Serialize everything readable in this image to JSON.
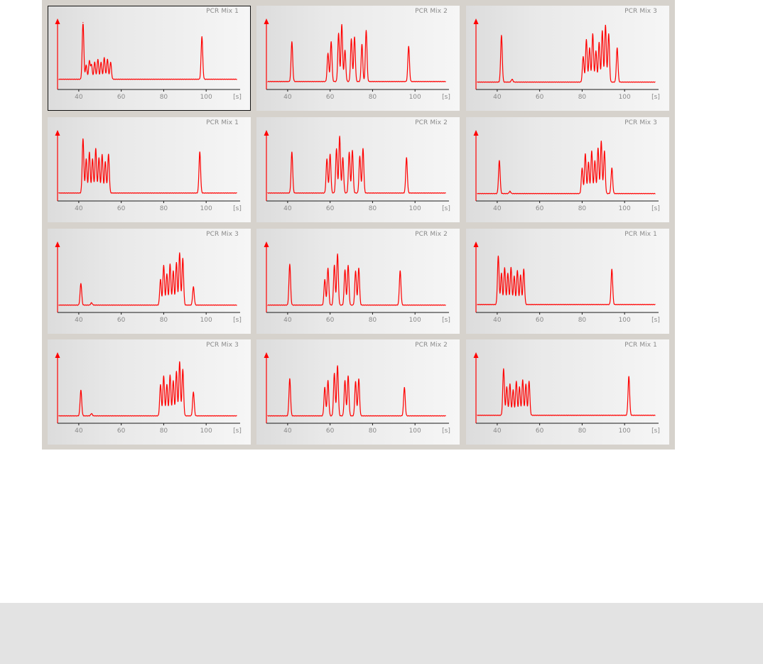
{
  "colors": {
    "trace": "#ff0000",
    "axis": "#1a1a1a",
    "panel_background": "#d6d2cc",
    "tick_label": "#8a8a8a"
  },
  "selected_cell": 0,
  "chart_data": [
    {
      "type": "line",
      "title": "PCR Mix 1",
      "x_unit_label": "[s]",
      "x_ticks": [
        40,
        60,
        80,
        100
      ],
      "x_tick_labels": [
        "40",
        "60",
        "80",
        "100"
      ],
      "xlim": [
        30,
        116
      ],
      "y_axis_arrow": true,
      "baseline": 0.08,
      "peaks": [
        {
          "x": 42,
          "h": 1.0
        },
        {
          "x": 43.5,
          "h": 0.25
        },
        {
          "x": 45,
          "h": 0.32
        },
        {
          "x": 46,
          "h": 0.25
        },
        {
          "x": 47.5,
          "h": 0.3
        },
        {
          "x": 49,
          "h": 0.35
        },
        {
          "x": 50.5,
          "h": 0.3
        },
        {
          "x": 52,
          "h": 0.38
        },
        {
          "x": 53.5,
          "h": 0.35
        },
        {
          "x": 55,
          "h": 0.3
        },
        {
          "x": 98,
          "h": 0.75
        }
      ]
    },
    {
      "type": "line",
      "title": "PCR Mix 2",
      "x_unit_label": "[s]",
      "x_ticks": [
        40,
        60,
        80,
        100
      ],
      "x_tick_labels": [
        "40",
        "60",
        "80",
        "100"
      ],
      "xlim": [
        30,
        116
      ],
      "y_axis_arrow": true,
      "baseline": 0.04,
      "peaks": [
        {
          "x": 42,
          "h": 0.7
        },
        {
          "x": 59,
          "h": 0.5
        },
        {
          "x": 60.5,
          "h": 0.7
        },
        {
          "x": 64,
          "h": 0.85
        },
        {
          "x": 65.5,
          "h": 1.0
        },
        {
          "x": 67,
          "h": 0.55
        },
        {
          "x": 70,
          "h": 0.75
        },
        {
          "x": 71.5,
          "h": 0.78
        },
        {
          "x": 75,
          "h": 0.65
        },
        {
          "x": 77,
          "h": 0.9
        },
        {
          "x": 97,
          "h": 0.62
        }
      ]
    },
    {
      "type": "line",
      "title": "PCR Mix 3",
      "x_unit_label": "[s]",
      "x_ticks": [
        40,
        60,
        80,
        100
      ],
      "x_tick_labels": [
        "40",
        "60",
        "80",
        "100"
      ],
      "xlim": [
        30,
        116
      ],
      "y_axis_arrow": true,
      "baseline": 0.03,
      "peaks": [
        {
          "x": 42,
          "h": 0.82
        },
        {
          "x": 47,
          "h": 0.05
        },
        {
          "x": 80.5,
          "h": 0.45
        },
        {
          "x": 82,
          "h": 0.75
        },
        {
          "x": 83.5,
          "h": 0.6
        },
        {
          "x": 85,
          "h": 0.85
        },
        {
          "x": 86.5,
          "h": 0.55
        },
        {
          "x": 88,
          "h": 0.7
        },
        {
          "x": 89.5,
          "h": 0.9
        },
        {
          "x": 91,
          "h": 1.0
        },
        {
          "x": 92.5,
          "h": 0.85
        },
        {
          "x": 96.5,
          "h": 0.6
        }
      ]
    },
    {
      "type": "line",
      "title": "PCR Mix 1",
      "x_unit_label": "[s]",
      "x_ticks": [
        40,
        60,
        80,
        100
      ],
      "x_tick_labels": [
        "40",
        "60",
        "80",
        "100"
      ],
      "xlim": [
        30,
        116
      ],
      "y_axis_arrow": true,
      "baseline": 0.04,
      "peaks": [
        {
          "x": 42,
          "h": 0.95
        },
        {
          "x": 43.5,
          "h": 0.6
        },
        {
          "x": 45,
          "h": 0.72
        },
        {
          "x": 46.5,
          "h": 0.6
        },
        {
          "x": 48,
          "h": 0.78
        },
        {
          "x": 49.5,
          "h": 0.62
        },
        {
          "x": 51,
          "h": 0.68
        },
        {
          "x": 52.5,
          "h": 0.55
        },
        {
          "x": 54,
          "h": 0.68
        },
        {
          "x": 97,
          "h": 0.72
        }
      ]
    },
    {
      "type": "line",
      "title": "PCR Mix 2",
      "x_unit_label": "[s]",
      "x_ticks": [
        40,
        60,
        80,
        100
      ],
      "x_tick_labels": [
        "40",
        "60",
        "80",
        "100"
      ],
      "xlim": [
        30,
        116
      ],
      "y_axis_arrow": true,
      "baseline": 0.04,
      "peaks": [
        {
          "x": 42,
          "h": 0.72
        },
        {
          "x": 58.5,
          "h": 0.6
        },
        {
          "x": 60,
          "h": 0.68
        },
        {
          "x": 63,
          "h": 0.78
        },
        {
          "x": 64.5,
          "h": 1.0
        },
        {
          "x": 66,
          "h": 0.62
        },
        {
          "x": 69,
          "h": 0.72
        },
        {
          "x": 70.5,
          "h": 0.75
        },
        {
          "x": 74,
          "h": 0.65
        },
        {
          "x": 75.5,
          "h": 0.78
        },
        {
          "x": 96,
          "h": 0.62
        }
      ]
    },
    {
      "type": "line",
      "title": "PCR Mix 3",
      "x_unit_label": "[s]",
      "x_ticks": [
        40,
        60,
        80,
        100
      ],
      "x_tick_labels": [
        "40",
        "60",
        "80",
        "100"
      ],
      "xlim": [
        30,
        116
      ],
      "y_axis_arrow": true,
      "baseline": 0.03,
      "peaks": [
        {
          "x": 41,
          "h": 0.58
        },
        {
          "x": 46,
          "h": 0.04
        },
        {
          "x": 80,
          "h": 0.45
        },
        {
          "x": 81.5,
          "h": 0.7
        },
        {
          "x": 83,
          "h": 0.55
        },
        {
          "x": 84.5,
          "h": 0.75
        },
        {
          "x": 86,
          "h": 0.58
        },
        {
          "x": 87.5,
          "h": 0.8
        },
        {
          "x": 89,
          "h": 0.92
        },
        {
          "x": 90.5,
          "h": 0.75
        },
        {
          "x": 94,
          "h": 0.45
        }
      ]
    },
    {
      "type": "line",
      "title": "PCR Mix 3",
      "x_unit_label": "[s]",
      "x_ticks": [
        40,
        60,
        80,
        100
      ],
      "x_tick_labels": [
        "40",
        "60",
        "80",
        "100"
      ],
      "xlim": [
        30,
        116
      ],
      "y_axis_arrow": true,
      "baseline": 0.03,
      "peaks": [
        {
          "x": 41,
          "h": 0.38
        },
        {
          "x": 46,
          "h": 0.04
        },
        {
          "x": 78.5,
          "h": 0.45
        },
        {
          "x": 80,
          "h": 0.7
        },
        {
          "x": 81.5,
          "h": 0.55
        },
        {
          "x": 83,
          "h": 0.72
        },
        {
          "x": 84.5,
          "h": 0.6
        },
        {
          "x": 86,
          "h": 0.75
        },
        {
          "x": 87.5,
          "h": 0.92
        },
        {
          "x": 89,
          "h": 0.82
        },
        {
          "x": 94,
          "h": 0.32
        }
      ]
    },
    {
      "type": "line",
      "title": "PCR Mix 2",
      "x_unit_label": "[s]",
      "x_ticks": [
        40,
        60,
        80,
        100
      ],
      "x_tick_labels": [
        "40",
        "60",
        "80",
        "100"
      ],
      "xlim": [
        30,
        116
      ],
      "y_axis_arrow": true,
      "baseline": 0.03,
      "peaks": [
        {
          "x": 41,
          "h": 0.72
        },
        {
          "x": 57.5,
          "h": 0.45
        },
        {
          "x": 59,
          "h": 0.65
        },
        {
          "x": 62,
          "h": 0.7
        },
        {
          "x": 63.5,
          "h": 0.9
        },
        {
          "x": 67,
          "h": 0.62
        },
        {
          "x": 68.5,
          "h": 0.7
        },
        {
          "x": 72,
          "h": 0.6
        },
        {
          "x": 73.5,
          "h": 0.65
        },
        {
          "x": 93,
          "h": 0.6
        }
      ]
    },
    {
      "type": "line",
      "title": "PCR Mix 1",
      "x_unit_label": "[s]",
      "x_ticks": [
        40,
        60,
        80,
        100
      ],
      "x_tick_labels": [
        "40",
        "60",
        "80",
        "100"
      ],
      "xlim": [
        30,
        116
      ],
      "y_axis_arrow": true,
      "baseline": 0.04,
      "peaks": [
        {
          "x": 40.5,
          "h": 0.85
        },
        {
          "x": 42,
          "h": 0.55
        },
        {
          "x": 43.5,
          "h": 0.65
        },
        {
          "x": 45,
          "h": 0.55
        },
        {
          "x": 46.5,
          "h": 0.65
        },
        {
          "x": 48,
          "h": 0.5
        },
        {
          "x": 49.5,
          "h": 0.6
        },
        {
          "x": 51,
          "h": 0.52
        },
        {
          "x": 52.5,
          "h": 0.62
        },
        {
          "x": 94,
          "h": 0.62
        }
      ]
    },
    {
      "type": "line",
      "title": "PCR Mix 3",
      "x_unit_label": "[s]",
      "x_ticks": [
        40,
        60,
        80,
        100
      ],
      "x_tick_labels": [
        "40",
        "60",
        "80",
        "100"
      ],
      "xlim": [
        30,
        116
      ],
      "y_axis_arrow": true,
      "baseline": 0.03,
      "peaks": [
        {
          "x": 41,
          "h": 0.45
        },
        {
          "x": 46,
          "h": 0.04
        },
        {
          "x": 78.5,
          "h": 0.55
        },
        {
          "x": 80,
          "h": 0.7
        },
        {
          "x": 81.5,
          "h": 0.55
        },
        {
          "x": 83,
          "h": 0.72
        },
        {
          "x": 84.5,
          "h": 0.62
        },
        {
          "x": 86,
          "h": 0.78
        },
        {
          "x": 87.5,
          "h": 0.95
        },
        {
          "x": 89,
          "h": 0.82
        },
        {
          "x": 94,
          "h": 0.42
        }
      ]
    },
    {
      "type": "line",
      "title": "PCR Mix 2",
      "x_unit_label": "[s]",
      "x_ticks": [
        40,
        60,
        80,
        100
      ],
      "x_tick_labels": [
        "40",
        "60",
        "80",
        "100"
      ],
      "xlim": [
        30,
        116
      ],
      "y_axis_arrow": true,
      "baseline": 0.03,
      "peaks": [
        {
          "x": 41,
          "h": 0.65
        },
        {
          "x": 57.5,
          "h": 0.5
        },
        {
          "x": 59,
          "h": 0.62
        },
        {
          "x": 62,
          "h": 0.75
        },
        {
          "x": 63.5,
          "h": 0.88
        },
        {
          "x": 67,
          "h": 0.62
        },
        {
          "x": 68.5,
          "h": 0.7
        },
        {
          "x": 72,
          "h": 0.6
        },
        {
          "x": 73.5,
          "h": 0.65
        },
        {
          "x": 95,
          "h": 0.5
        }
      ]
    },
    {
      "type": "line",
      "title": "PCR Mix 1",
      "x_unit_label": "[s]",
      "x_ticks": [
        40,
        60,
        80,
        100
      ],
      "x_tick_labels": [
        "40",
        "60",
        "80",
        "100"
      ],
      "xlim": [
        30,
        116
      ],
      "y_axis_arrow": true,
      "baseline": 0.04,
      "peaks": [
        {
          "x": 43,
          "h": 0.82
        },
        {
          "x": 44.5,
          "h": 0.5
        },
        {
          "x": 46,
          "h": 0.55
        },
        {
          "x": 47.5,
          "h": 0.45
        },
        {
          "x": 49,
          "h": 0.6
        },
        {
          "x": 50.5,
          "h": 0.5
        },
        {
          "x": 52,
          "h": 0.62
        },
        {
          "x": 53.5,
          "h": 0.55
        },
        {
          "x": 55,
          "h": 0.6
        },
        {
          "x": 102,
          "h": 0.68
        }
      ]
    }
  ]
}
